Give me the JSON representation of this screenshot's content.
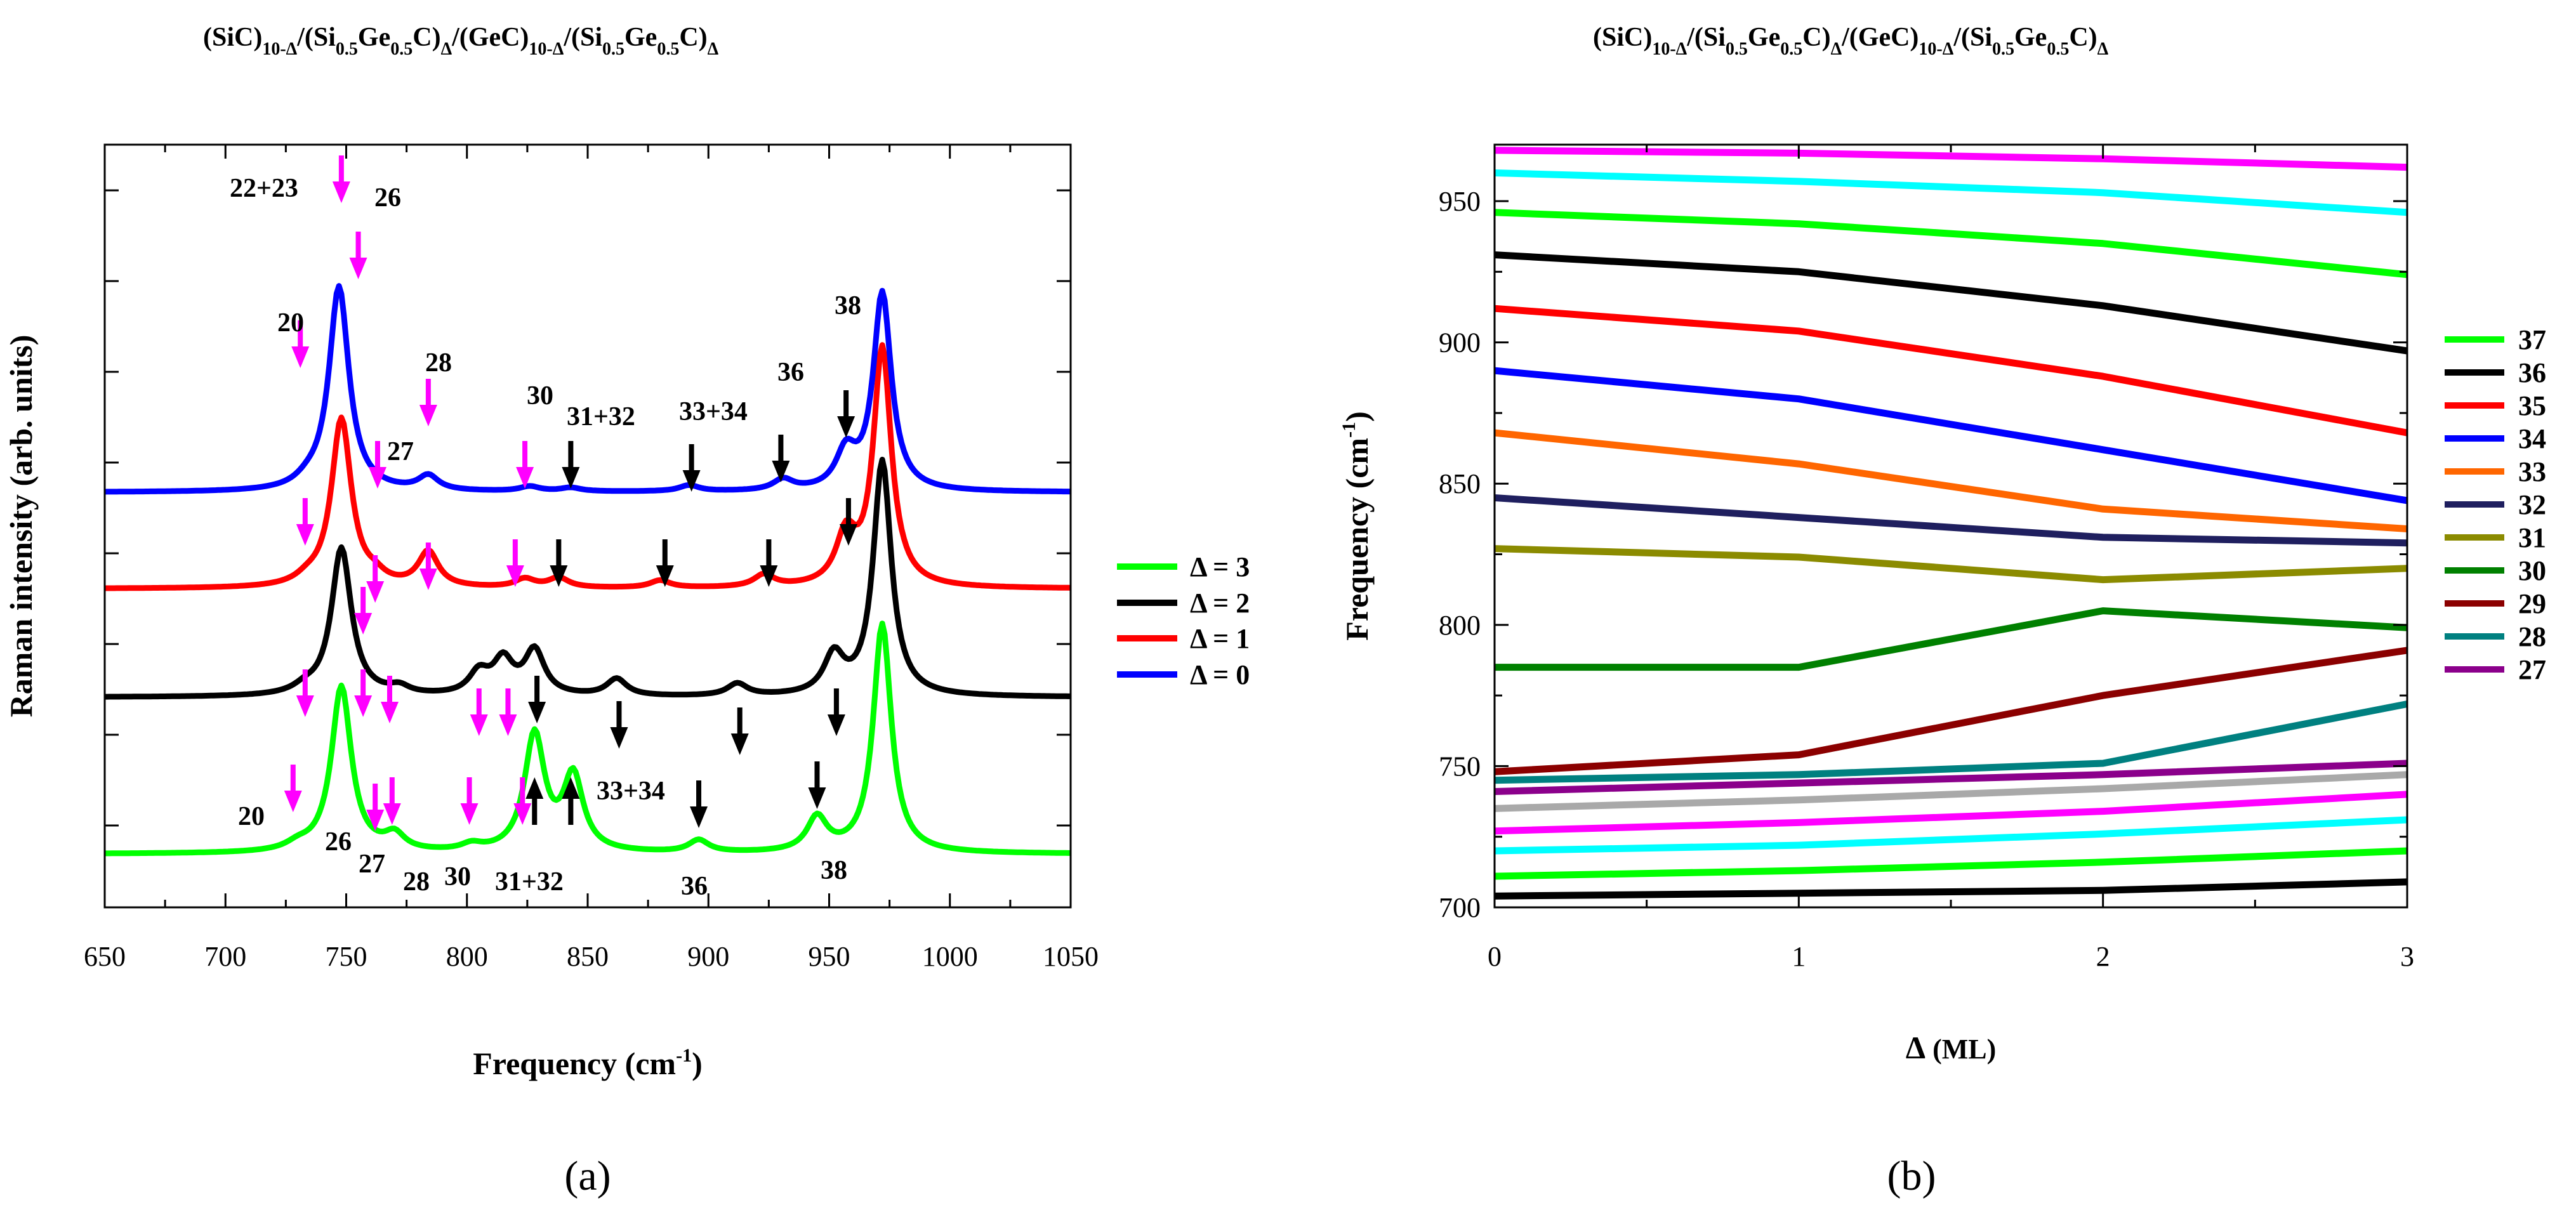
{
  "panel_labels": {
    "a": "(a)",
    "b": "(b)"
  },
  "colors": {
    "d0": "#0000ff",
    "d1": "#ff0000",
    "d2": "#000000",
    "d3": "#00ff00",
    "magenta_arrow": "#ff00ff",
    "black_arrow": "#000000",
    "m37": "#00ff00",
    "m36": "#000000",
    "m35": "#ff0000",
    "m34": "#0000ff",
    "m33": "#ff6600",
    "m32": "#1f1f5f",
    "m31": "#8b8b00",
    "m30": "#008000",
    "m29": "#8b0000",
    "m28": "#008080",
    "m27": "#8b008b",
    "cyan": "#00ffff",
    "magenta": "#ff00ff",
    "gray": "#a9a9a9"
  },
  "chart_data": [
    {
      "type": "line",
      "title": {
        "a": "(SiC)",
        "b": "10-Δ",
        "c": "/(Si",
        "d": "0.5",
        "e": "Ge",
        "f": "0.5",
        "g": "C)",
        "h": "Δ",
        "i": "/(GeC)",
        "j": "10-Δ",
        "k": "/(Si",
        "l": "0.5",
        "m": "Ge",
        "n": "0.5",
        "o": "C)",
        "p": "Δ"
      },
      "xlabel": {
        "main": "Frequency (cm",
        "sup": "-1",
        "end": ")"
      },
      "ylabel": "Raman intensity (arb. units)",
      "xlim": [
        650,
        1050
      ],
      "xticks": [
        "650",
        "700",
        "750",
        "800",
        "850",
        "900",
        "950",
        "1000",
        "1050"
      ],
      "series": [
        {
          "name": "Δ = 3",
          "baseline": 0.0,
          "peaks": [
            [
              730,
              0.05,
              6
            ],
            [
              748,
              1.38,
              5
            ],
            [
              770,
              0.13,
              5
            ],
            [
              802,
              0.05,
              5
            ],
            [
              828,
              0.97,
              5
            ],
            [
              844,
              0.62,
              5
            ],
            [
              896,
              0.1,
              5
            ],
            [
              945,
              0.28,
              5
            ],
            [
              972,
              1.9,
              4.5
            ]
          ]
        },
        {
          "name": "Δ = 2",
          "baseline": 1.3,
          "peaks": [
            [
              733,
              0.05,
              6
            ],
            [
              748,
              1.23,
              5
            ],
            [
              772,
              0.06,
              5
            ],
            [
              805,
              0.18,
              5
            ],
            [
              815,
              0.28,
              5
            ],
            [
              828,
              0.37,
              5
            ],
            [
              862,
              0.14,
              5
            ],
            [
              912,
              0.1,
              5
            ],
            [
              952,
              0.32,
              5
            ],
            [
              972,
              1.95,
              4.5
            ]
          ]
        },
        {
          "name": "Δ = 1",
          "baseline": 2.2,
          "peaks": [
            [
              734,
              0.05,
              6
            ],
            [
              748,
              1.4,
              5
            ],
            [
              762,
              0.06,
              5
            ],
            [
              784,
              0.29,
              5
            ],
            [
              824,
              0.07,
              5
            ],
            [
              838,
              0.08,
              5
            ],
            [
              880,
              0.06,
              5
            ],
            [
              923,
              0.1,
              5
            ],
            [
              957,
              0.4,
              5
            ],
            [
              972,
              1.98,
              4.5
            ]
          ]
        },
        {
          "name": "Δ = 0",
          "baseline": 3.0,
          "peaks": [
            [
              734,
              0.05,
              6
            ],
            [
              747,
              1.7,
              5
            ],
            [
              784,
              0.12,
              5
            ],
            [
              826,
              0.04,
              5
            ],
            [
              843,
              0.03,
              5
            ],
            [
              892,
              0.05,
              5
            ],
            [
              931,
              0.09,
              5
            ],
            [
              957,
              0.3,
              5
            ],
            [
              972,
              1.64,
              4.5
            ]
          ]
        }
      ],
      "annotations": {
        "l22_23": "22+23",
        "l26_top": "26",
        "l20_top": "20",
        "l27_top": "27",
        "l28_top": "28",
        "l30_top": "30",
        "l31_32_top": "31+32",
        "l33_34_top": "33+34",
        "l36_top": "36",
        "l38_top": "38",
        "l20_bot": "20",
        "l26_bot": "26",
        "l27_bot": "27",
        "l28_bot": "28",
        "l30_bot": "30",
        "l31_32_bot": "31+32",
        "l33_34_bot": "33+34",
        "l36_bot": "36",
        "l38_bot": "38"
      },
      "legend": [
        "Δ = 3",
        "Δ = 2",
        "Δ = 1",
        "Δ = 0"
      ]
    },
    {
      "type": "line",
      "title": {
        "a": "(SiC)",
        "b": "10-Δ",
        "c": "/(Si",
        "d": "0.5",
        "e": "Ge",
        "f": "0.5",
        "g": "C)",
        "h": "Δ",
        "i": "/(GeC)",
        "j": "10-Δ",
        "k": "/(Si",
        "l": "0.5",
        "m": "Ge",
        "n": "0.5",
        "o": "C)",
        "p": "Δ"
      },
      "xlabel": {
        "main": "Δ",
        "unit": " (ML)"
      },
      "ylabel": {
        "main": "Frequency (cm",
        "sup": "-1",
        "end": ")"
      },
      "xlim": [
        0,
        3
      ],
      "ylim": [
        700,
        970
      ],
      "x": [
        0,
        1,
        2,
        3
      ],
      "xticks": [
        "0",
        "1",
        "2",
        "3"
      ],
      "yticks": [
        "700",
        "750",
        "800",
        "850",
        "900",
        "950"
      ],
      "series": [
        {
          "name": "37",
          "color": "m37",
          "values": [
            946,
            942,
            935,
            924
          ]
        },
        {
          "name": "36",
          "color": "m36",
          "values": [
            931,
            925,
            913,
            897
          ]
        },
        {
          "name": "35",
          "color": "m35",
          "values": [
            912,
            904,
            888,
            868
          ]
        },
        {
          "name": "34",
          "color": "m34",
          "values": [
            890,
            880,
            862,
            844
          ]
        },
        {
          "name": "33",
          "color": "m33",
          "values": [
            868,
            857,
            841,
            834
          ]
        },
        {
          "name": "32",
          "color": "m32",
          "values": [
            845,
            838,
            831,
            829
          ]
        },
        {
          "name": "31",
          "color": "m31",
          "values": [
            827,
            824,
            816,
            820
          ]
        },
        {
          "name": "30",
          "color": "m30",
          "values": [
            785,
            785,
            805,
            799
          ]
        },
        {
          "name": "29",
          "color": "m29",
          "values": [
            748,
            754,
            775,
            791
          ]
        },
        {
          "name": "28",
          "color": "m28",
          "values": [
            745,
            747,
            751,
            772
          ]
        },
        {
          "name": "27",
          "color": "m27",
          "values": [
            741,
            744,
            747,
            751
          ]
        },
        {
          "name": "",
          "color": "magenta",
          "values": [
            968,
            967,
            965,
            962
          ]
        },
        {
          "name": "",
          "color": "cyan",
          "values": [
            960,
            957,
            953,
            946
          ]
        },
        {
          "name": "",
          "color": "gray",
          "values": [
            735,
            738,
            742,
            747
          ]
        },
        {
          "name": "",
          "color": "magenta",
          "values": [
            727,
            730,
            734,
            740
          ]
        },
        {
          "name": "",
          "color": "cyan",
          "values": [
            720,
            722,
            726,
            731
          ]
        },
        {
          "name": "",
          "color": "m37",
          "values": [
            711,
            713,
            716,
            720
          ]
        },
        {
          "name": "",
          "color": "m36",
          "values": [
            704,
            705,
            706,
            709
          ]
        }
      ],
      "legend": [
        "37",
        "36",
        "35",
        "34",
        "33",
        "32",
        "31",
        "30",
        "29",
        "28",
        "27"
      ]
    }
  ]
}
